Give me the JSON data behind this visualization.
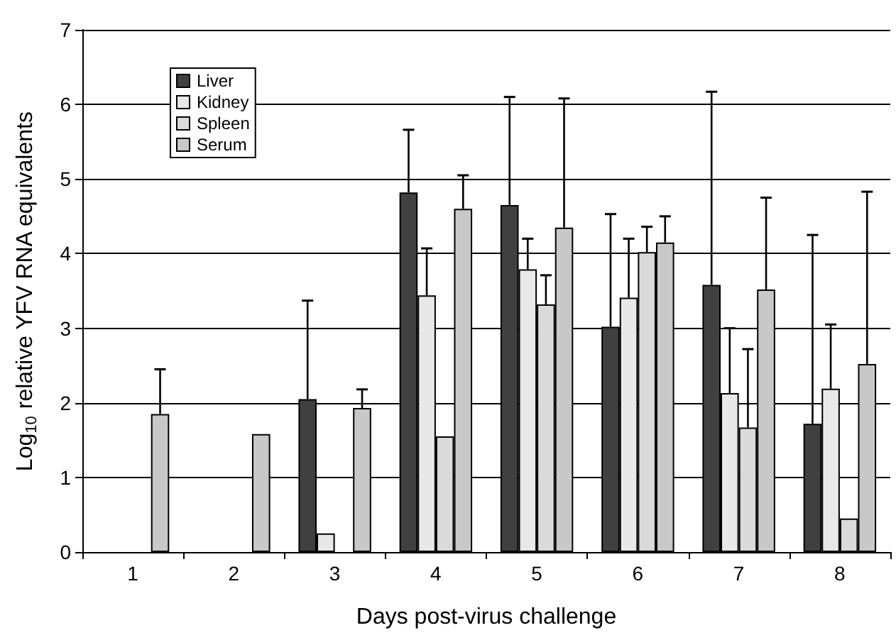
{
  "chart_data": {
    "type": "bar",
    "xlabel": "Days post-virus challenge",
    "ylabel": "Log$_{10}$ relative YFV RNA equivalents",
    "categories": [
      "1",
      "2",
      "3",
      "4",
      "5",
      "6",
      "7",
      "8"
    ],
    "series": [
      {
        "name": "Liver",
        "color": "#404040",
        "values": [
          null,
          null,
          2.05,
          4.82,
          4.65,
          3.02,
          3.58,
          1.72
        ],
        "errors": [
          null,
          null,
          [
            2.05,
            3.37
          ],
          [
            4.82,
            5.66
          ],
          [
            4.65,
            6.1
          ],
          [
            3.02,
            4.53
          ],
          [
            3.58,
            6.17
          ],
          [
            1.72,
            4.25
          ]
        ]
      },
      {
        "name": "Kidney",
        "color": "#e8e8e8",
        "values": [
          null,
          null,
          0.25,
          3.44,
          3.79,
          3.41,
          2.13,
          2.19
        ],
        "errors": [
          null,
          null,
          null,
          [
            3.44,
            4.07
          ],
          [
            3.79,
            4.2
          ],
          [
            3.41,
            4.2
          ],
          [
            2.13,
            3.0
          ],
          [
            2.19,
            3.05
          ]
        ]
      },
      {
        "name": "Spleen",
        "color": "#dadada",
        "values": [
          null,
          null,
          null,
          1.55,
          3.32,
          4.02,
          1.67,
          0.45
        ],
        "errors": [
          null,
          null,
          null,
          null,
          [
            3.32,
            3.71
          ],
          [
            4.02,
            4.36
          ],
          [
            1.67,
            2.72
          ],
          null
        ]
      },
      {
        "name": "Serum",
        "color": "#c8c8c8",
        "values": [
          1.85,
          1.58,
          1.93,
          4.6,
          4.35,
          4.15,
          3.52,
          2.52
        ],
        "errors": [
          [
            1.85,
            2.45
          ],
          null,
          [
            1.93,
            2.18
          ],
          [
            4.6,
            5.05
          ],
          [
            4.35,
            6.08
          ],
          [
            4.15,
            4.5
          ],
          [
            3.52,
            4.75
          ],
          [
            2.52,
            4.83
          ]
        ]
      }
    ],
    "ylim": [
      0,
      7
    ],
    "yticks": [
      0,
      1,
      2,
      3,
      4,
      5,
      6,
      7
    ],
    "grid": "y",
    "legend": "top left"
  }
}
